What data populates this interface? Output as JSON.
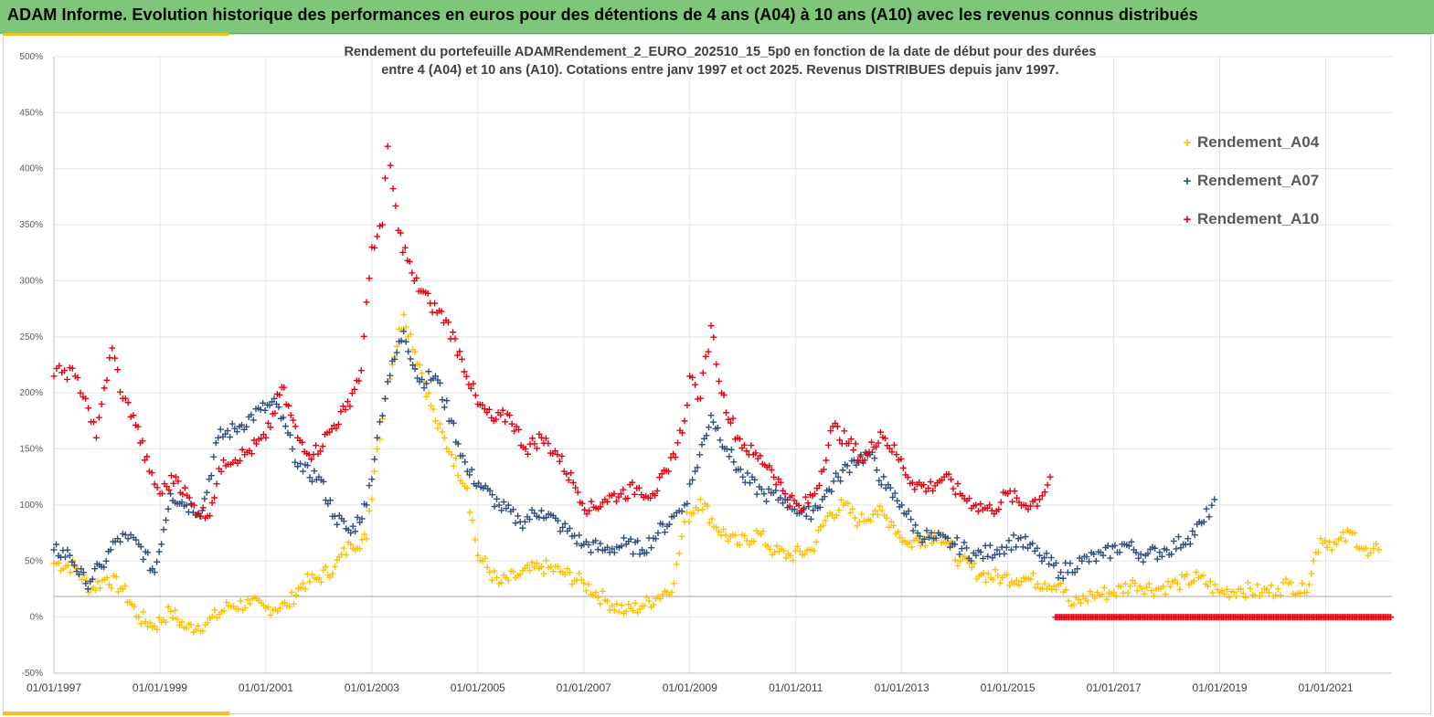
{
  "header": {
    "title": "ADAM Informe. Evolution historique des performances en euros pour des détentions de 4 ans (A04) à 10 ans (A10) avec les revenus connus distribués"
  },
  "colors": {
    "banner": "#7dc67a",
    "accent": "#f2c01e",
    "a04": "#ffc000",
    "a07": "#2f4f7f",
    "a10": "#e8000f"
  },
  "chart_data": {
    "type": "scatter",
    "title_lines": [
      "Rendement du portefeuille ADAMRendement_2_EURO_202510_15_5p0  en fonction de la date de début pour des durées",
      "entre 4 (A04) et 10 ans (A10). Cotations entre janv 1997 et oct 2025. Revenus DISTRIBUES depuis janv 1997."
    ],
    "xlabel": "",
    "ylabel": "",
    "xlim": [
      1997.0,
      2022.25
    ],
    "ylim": [
      -50,
      500
    ],
    "grid": true,
    "legend_position": "top-right",
    "y_ticks": [
      -50,
      0,
      50,
      100,
      150,
      200,
      250,
      300,
      350,
      400,
      450,
      500
    ],
    "y_tick_labels": [
      "-50%",
      "0%",
      "50%",
      "100%",
      "150%",
      "200%",
      "250%",
      "300%",
      "350%",
      "400%",
      "450%",
      "500%"
    ],
    "x_ticks": [
      1997,
      1999,
      2001,
      2003,
      2005,
      2007,
      2009,
      2011,
      2013,
      2015,
      2017,
      2019,
      2021
    ],
    "x_tick_labels": [
      "01/01/1997",
      "01/01/1999",
      "01/01/2001",
      "01/01/2003",
      "01/01/2005",
      "01/01/2007",
      "01/01/2009",
      "01/01/2011",
      "01/01/2013",
      "01/01/2015",
      "01/01/2017",
      "01/01/2019",
      "01/01/2021"
    ],
    "marker": "+",
    "series": [
      {
        "name": "Rendement_A04",
        "color": "#ffc000",
        "x": [
          1997.0,
          1997.4,
          1997.7,
          1998.0,
          1998.3,
          1998.6,
          1998.9,
          1999.2,
          1999.5,
          1999.9,
          2000.3,
          2000.7,
          2001.0,
          2001.4,
          2001.7,
          2002.0,
          2002.3,
          2002.6,
          2002.9,
          2003.1,
          2003.3,
          2003.6,
          2003.9,
          2004.2,
          2004.5,
          2004.8,
          2005.0,
          2005.4,
          2005.8,
          2006.2,
          2006.6,
          2007.0,
          2007.4,
          2007.8,
          2008.1,
          2008.4,
          2008.7,
          2008.9,
          2009.2,
          2009.5,
          2009.9,
          2010.3,
          2010.6,
          2010.9,
          2011.3,
          2011.6,
          2011.9,
          2012.2,
          2012.5,
          2012.8,
          2013.1,
          2013.4,
          2013.7,
          2014.1,
          2014.5,
          2014.9,
          2015.3,
          2015.7,
          2016.0,
          2016.2,
          2016.6,
          2017.0,
          2017.4,
          2017.8,
          2018.2,
          2018.6,
          2019.0,
          2019.4,
          2019.8,
          2020.1,
          2020.3,
          2020.6,
          2020.9,
          2021.2,
          2021.5,
          2021.8,
          2022.0
        ],
        "y": [
          48,
          45,
          25,
          35,
          25,
          0,
          -8,
          5,
          -10,
          -5,
          10,
          12,
          8,
          10,
          30,
          35,
          45,
          65,
          70,
          150,
          210,
          270,
          225,
          175,
          145,
          115,
          55,
          30,
          38,
          45,
          40,
          30,
          15,
          5,
          10,
          18,
          30,
          85,
          105,
          80,
          65,
          75,
          58,
          55,
          60,
          90,
          100,
          85,
          95,
          85,
          65,
          70,
          75,
          50,
          38,
          35,
          35,
          30,
          30,
          10,
          20,
          22,
          30,
          25,
          30,
          35,
          22,
          25,
          22,
          25,
          30,
          22,
          70,
          65,
          75,
          55,
          60
        ]
      },
      {
        "name": "Rendement_A07",
        "color": "#2f4f7f",
        "x": [
          1997.0,
          1997.3,
          1997.6,
          1997.9,
          1998.2,
          1998.4,
          1998.6,
          1998.9,
          1999.2,
          1999.5,
          1999.8,
          2000.1,
          2000.5,
          2000.9,
          2001.2,
          2001.5,
          2001.7,
          2002.0,
          2002.3,
          2002.6,
          2002.9,
          2003.1,
          2003.3,
          2003.6,
          2003.9,
          2004.2,
          2004.5,
          2004.8,
          2005.1,
          2005.4,
          2005.8,
          2006.2,
          2006.6,
          2007.0,
          2007.4,
          2007.8,
          2008.1,
          2008.4,
          2008.7,
          2008.9,
          2009.1,
          2009.4,
          2009.7,
          2010.0,
          2010.4,
          2010.8,
          2011.2,
          2011.5,
          2011.8,
          2012.1,
          2012.4,
          2012.7,
          2013.0,
          2013.3,
          2013.6,
          2014.0,
          2014.4,
          2014.8,
          2015.2,
          2015.6,
          2016.0,
          2016.4,
          2016.8,
          2017.2,
          2017.6,
          2018.0,
          2018.4,
          2018.7,
          2018.9
        ],
        "y": [
          60,
          55,
          30,
          45,
          70,
          70,
          65,
          40,
          110,
          100,
          95,
          160,
          170,
          185,
          190,
          150,
          130,
          125,
          90,
          75,
          100,
          160,
          210,
          255,
          210,
          215,
          175,
          130,
          115,
          100,
          85,
          95,
          80,
          65,
          60,
          65,
          60,
          75,
          90,
          100,
          130,
          180,
          150,
          125,
          110,
          105,
          90,
          105,
          125,
          140,
          145,
          115,
          100,
          75,
          70,
          65,
          55,
          60,
          70,
          55,
          40,
          50,
          55,
          65,
          55,
          60,
          70,
          85,
          105
        ]
      },
      {
        "name": "Rendement_A10",
        "color": "#e8000f",
        "x": [
          1997.0,
          1997.2,
          1997.4,
          1997.6,
          1997.8,
          1997.9,
          1998.1,
          1998.3,
          1998.5,
          1998.8,
          1999.0,
          1999.3,
          1999.6,
          1999.9,
          2000.2,
          2000.6,
          2001.0,
          2001.3,
          2001.6,
          2001.9,
          2002.2,
          2002.5,
          2002.8,
          2003.0,
          2003.2,
          2003.3,
          2003.5,
          2003.8,
          2004.1,
          2004.4,
          2004.7,
          2005.0,
          2005.3,
          2005.6,
          2005.9,
          2006.2,
          2006.5,
          2006.8,
          2007.1,
          2007.4,
          2007.7,
          2008.0,
          2008.3,
          2008.6,
          2008.9,
          2009.0,
          2009.2,
          2009.4,
          2009.6,
          2009.9,
          2010.2,
          2010.5,
          2010.8,
          2011.1,
          2011.4,
          2011.7,
          2012.0,
          2012.3,
          2012.6,
          2012.9,
          2013.2,
          2013.5,
          2013.8,
          2014.1,
          2014.4,
          2014.7,
          2015.0,
          2015.3,
          2015.6,
          2015.8
        ],
        "y": [
          215,
          220,
          215,
          195,
          160,
          190,
          240,
          195,
          180,
          130,
          110,
          125,
          100,
          90,
          140,
          145,
          160,
          205,
          160,
          145,
          165,
          185,
          220,
          330,
          350,
          420,
          345,
          300,
          280,
          265,
          230,
          190,
          175,
          180,
          150,
          160,
          145,
          120,
          95,
          105,
          110,
          115,
          110,
          130,
          175,
          215,
          195,
          260,
          200,
          160,
          145,
          135,
          110,
          95,
          115,
          170,
          155,
          140,
          165,
          145,
          120,
          115,
          125,
          110,
          100,
          95,
          110,
          100,
          105,
          125
        ]
      },
      {
        "name": "Rendement_A10 (0%)",
        "color": "#e8000f",
        "legend": false,
        "x_range": [
          2015.9,
          2022.25
        ],
        "y_const": 0
      }
    ]
  },
  "legend": {
    "items": [
      {
        "label": "Rendement_A04",
        "marker": "+"
      },
      {
        "label": "Rendement_A07",
        "marker": "+"
      },
      {
        "label": "Rendement_A10",
        "marker": "+"
      }
    ]
  }
}
